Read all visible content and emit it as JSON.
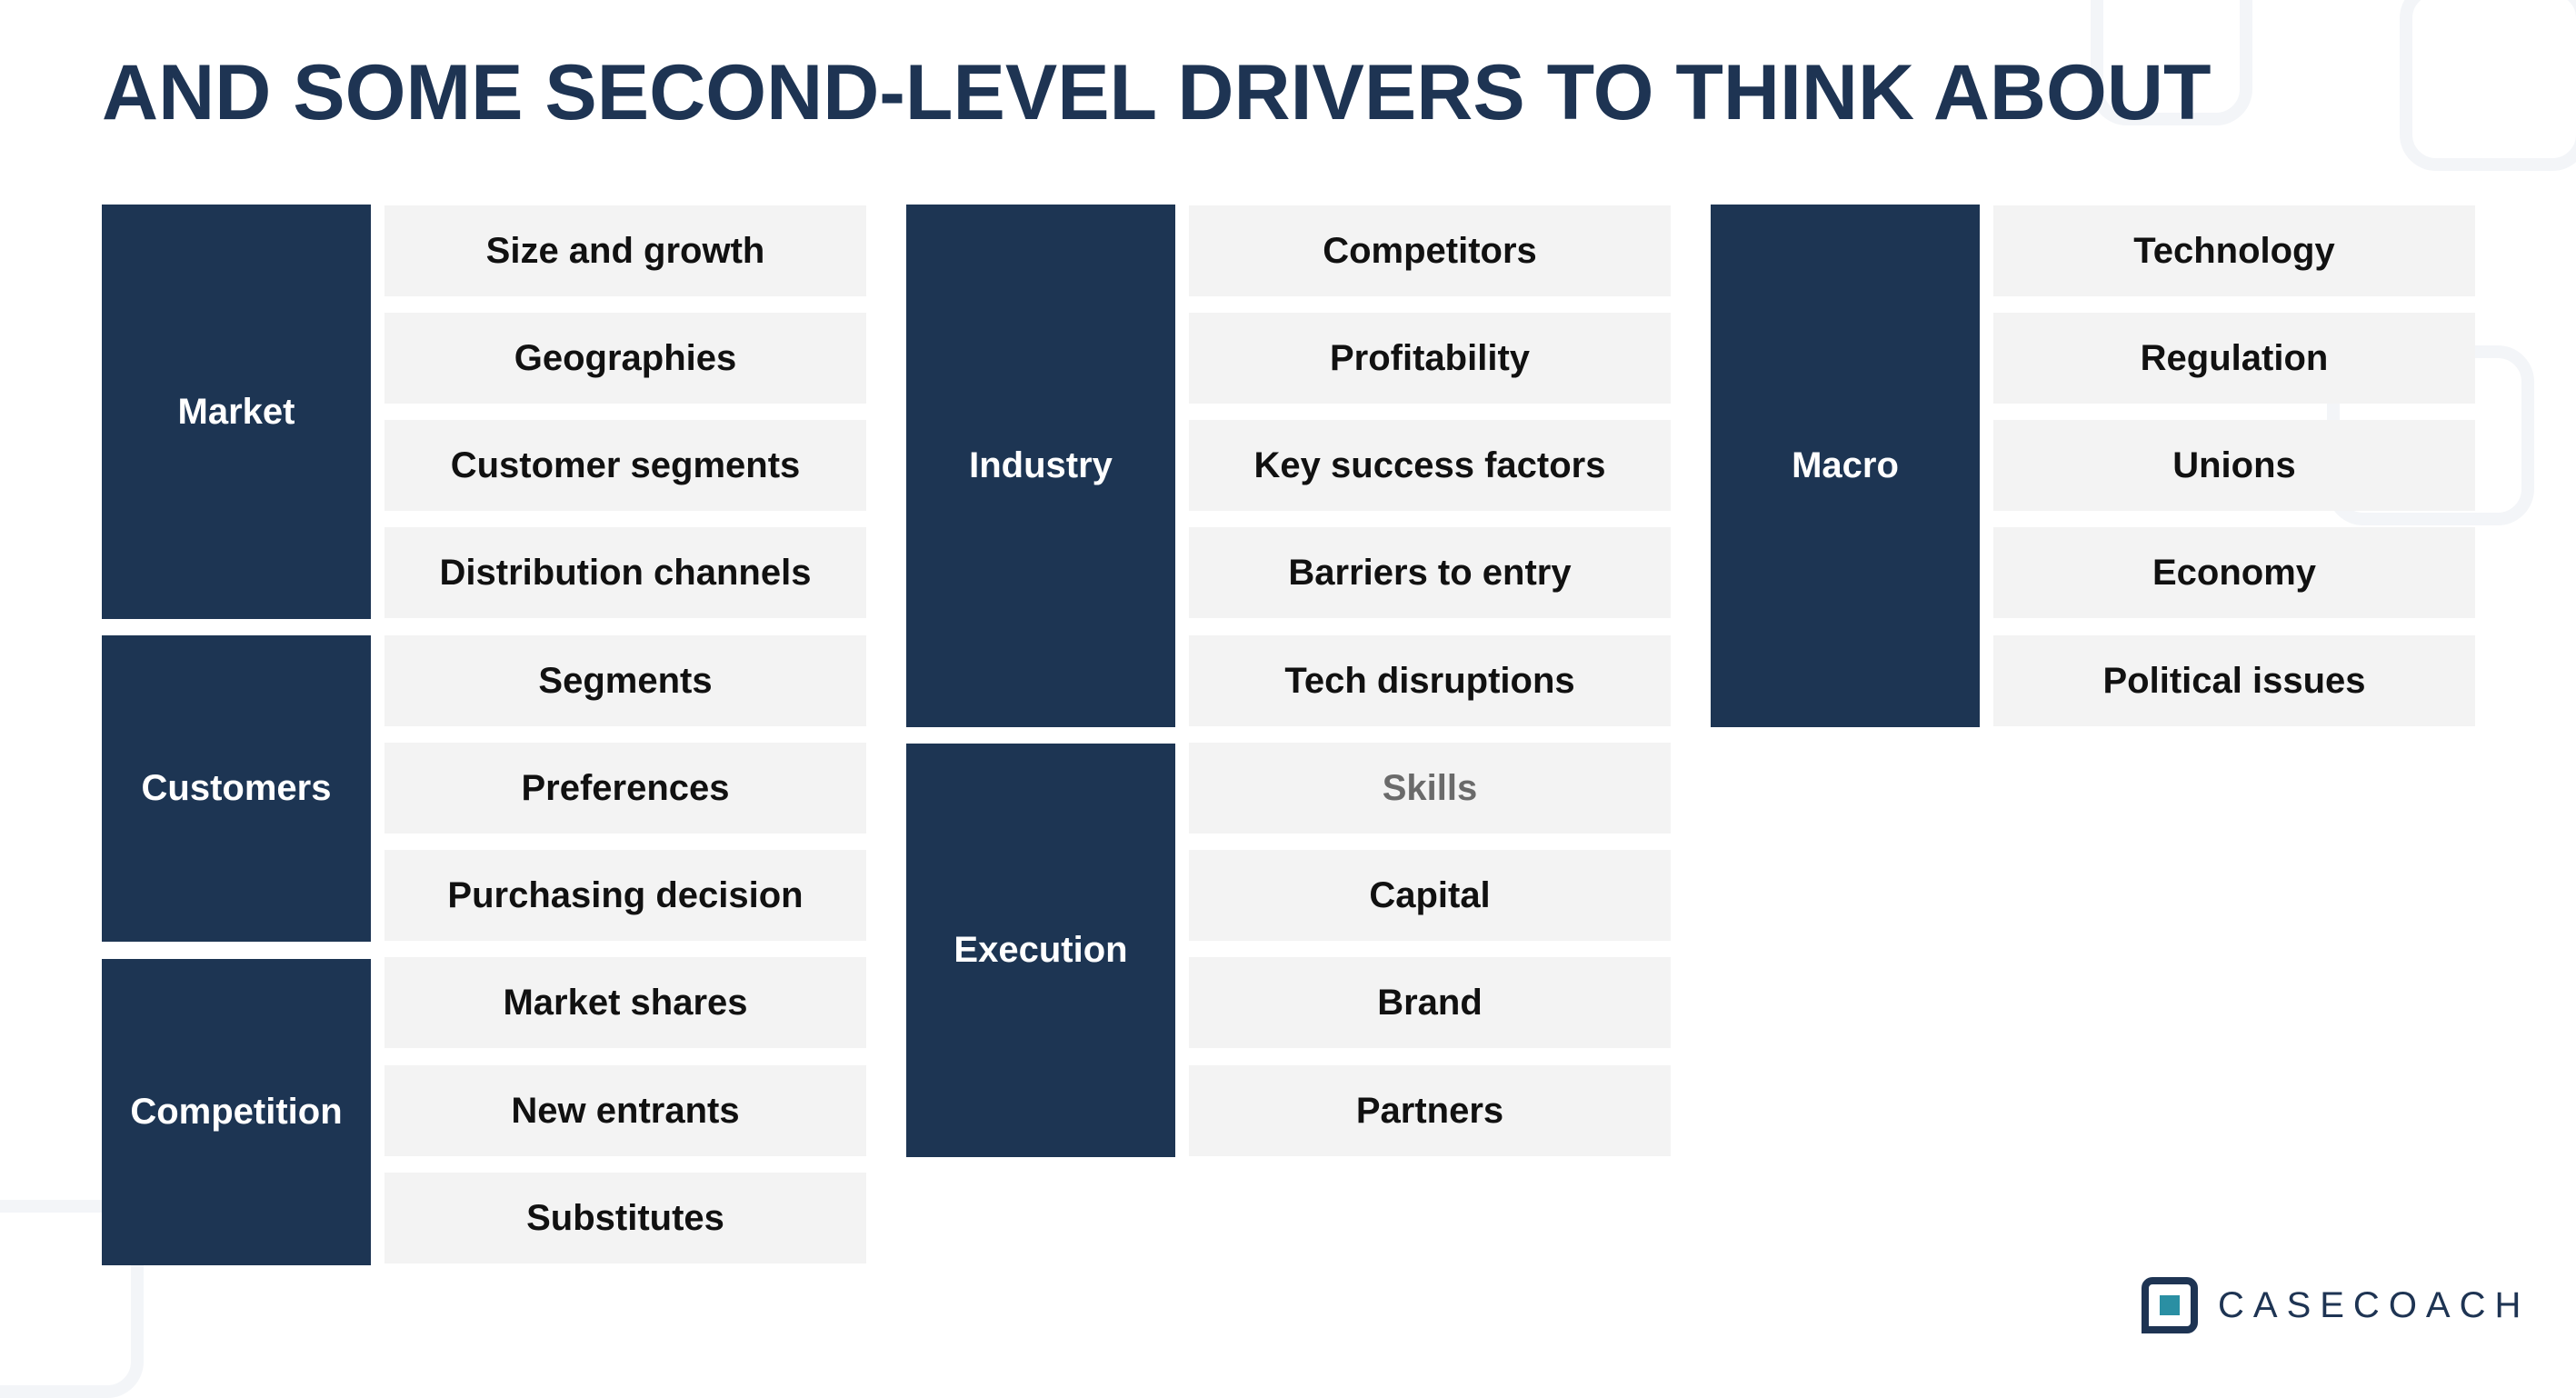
{
  "title": "AND SOME SECOND-LEVEL DRIVERS TO THINK ABOUT",
  "colors": {
    "title": "#1e3453",
    "category_bg": "#1d3553",
    "category_text": "#ffffff",
    "item_bg": "#f3f3f3",
    "item_text": "#111111",
    "muted_item_text": "#6a6a6a",
    "logo_accent": "#2a8fa3"
  },
  "columns": [
    {
      "groups": [
        {
          "category": "Market",
          "items": [
            "Size and growth",
            "Geographies",
            "Customer segments",
            "Distribution channels"
          ]
        },
        {
          "category": "Customers",
          "items": [
            "Segments",
            "Preferences",
            "Purchasing decision"
          ]
        },
        {
          "category": "Competition",
          "items": [
            "Market shares",
            "New entrants",
            "Substitutes"
          ]
        }
      ]
    },
    {
      "groups": [
        {
          "category": "Industry",
          "items": [
            "Competitors",
            "Profitability",
            "Key success factors",
            "Barriers to entry",
            "Tech disruptions"
          ]
        },
        {
          "category": "Execution",
          "items": [
            "Skills",
            "Capital",
            "Brand",
            "Partners"
          ]
        }
      ]
    },
    {
      "groups": [
        {
          "category": "Macro",
          "items": [
            "Technology",
            "Regulation",
            "Unions",
            "Economy",
            "Political issues"
          ]
        }
      ]
    }
  ],
  "logo": {
    "text": "CASECOACH",
    "icon": "casecoach-logo-icon"
  }
}
